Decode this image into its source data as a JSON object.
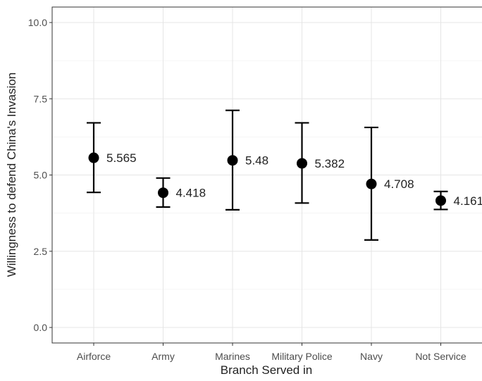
{
  "chart_data": {
    "type": "scatter",
    "xlabel": "Branch Served in",
    "ylabel": "Willingness to defend China's Invasion",
    "ylim": [
      0,
      10.5
    ],
    "y_ticks": [
      0,
      2.5,
      5,
      7.5,
      10
    ],
    "y_tick_labels": [
      "0.0",
      "2.5",
      "5.0",
      "7.5",
      "10.0"
    ],
    "grid": true,
    "categories": [
      "Airforce",
      "Army",
      "Marines",
      "Military Police",
      "Navy",
      "Not Service"
    ],
    "values": [
      5.565,
      4.418,
      5.48,
      5.382,
      4.708,
      4.161
    ],
    "lower": [
      4.43,
      3.95,
      3.86,
      4.08,
      2.87,
      3.87
    ],
    "upper": [
      6.71,
      4.9,
      7.12,
      6.71,
      6.56,
      4.46
    ],
    "data_labels": [
      "5.565",
      "4.418",
      "5.48",
      "5.382",
      "4.708",
      "4.161"
    ]
  }
}
